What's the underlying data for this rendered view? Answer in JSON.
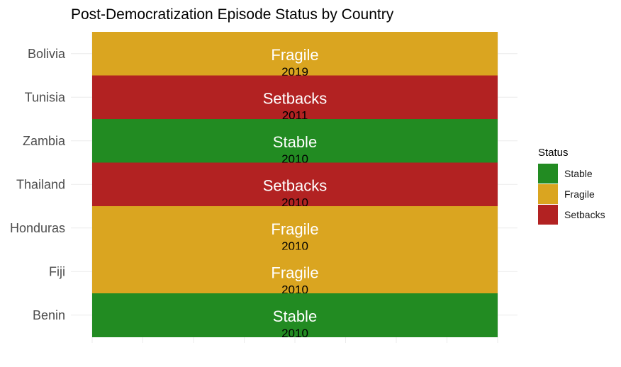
{
  "chart_data": {
    "type": "bar",
    "orientation": "horizontal",
    "title": "Post-Democratization Episode Status by Country",
    "xlabel": "",
    "ylabel": "",
    "categories": [
      "Bolivia",
      "Tunisia",
      "Zambia",
      "Thailand",
      "Honduras",
      "Fiji",
      "Benin"
    ],
    "statuses": [
      "Fragile",
      "Setbacks",
      "Stable",
      "Setbacks",
      "Fragile",
      "Fragile",
      "Stable"
    ],
    "years": [
      "2019",
      "2011",
      "2010",
      "2010",
      "2010",
      "2010",
      "2010"
    ],
    "grid": true,
    "legend": {
      "title": "Status",
      "position": "right",
      "entries": [
        {
          "label": "Stable",
          "color": "#228B22"
        },
        {
          "label": "Fragile",
          "color": "#DAA520"
        },
        {
          "label": "Setbacks",
          "color": "#B22222"
        }
      ]
    }
  }
}
